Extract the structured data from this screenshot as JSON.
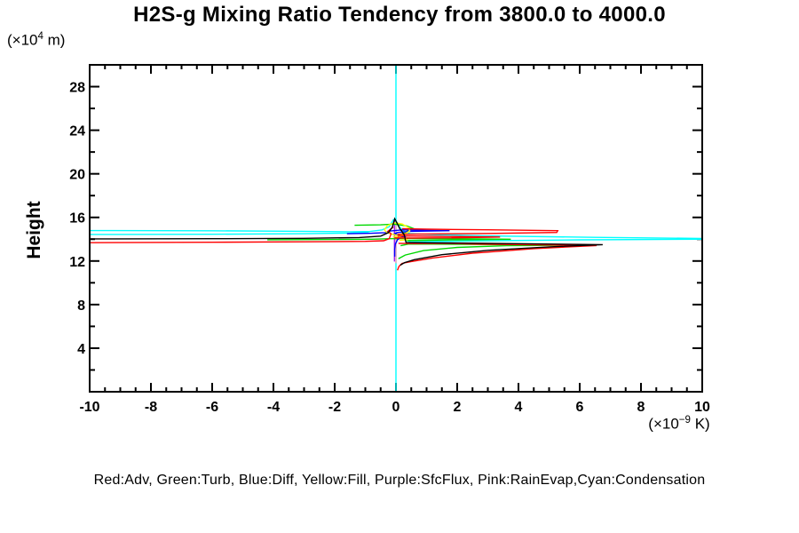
{
  "title": "H2S-g Mixing Ratio Tendency from 3800.0 to 4000.0",
  "y_axis_label": "Height",
  "y_axis_units": {
    "prefix": "(×10",
    "sup": "4",
    "suffix": " m)"
  },
  "x_axis_units": {
    "prefix": "(×10",
    "sup": "−9",
    "suffix": " K)"
  },
  "legend_caption": "Red:Adv, Green:Turb, Blue:Diff, Yellow:Fill, Purple:SfcFlux, Pink:RainEvap,Cyan:Condensation",
  "chart_data": {
    "type": "line",
    "title": "H2S-g Mixing Ratio Tendency from 3800.0 to 4000.0",
    "xlabel": "(×10−9 K)",
    "ylabel": "Height (×104 m)",
    "xlim": [
      -10,
      10
    ],
    "ylim": [
      0,
      30
    ],
    "x_major_ticks": [
      -10,
      -8,
      -6,
      -4,
      -2,
      0,
      2,
      4,
      6,
      8,
      10
    ],
    "x_minor_step": 0.5,
    "y_major_ticks": [
      4,
      8,
      12,
      16,
      20,
      24,
      28
    ],
    "y_minor_step": 2,
    "grid": false,
    "legend_position": "bottom-caption",
    "axis_color": "#000000",
    "series": [
      {
        "name": "condensation",
        "legend_label": "Condensation",
        "color": "#00ffff",
        "paths": [
          [
            [
              0,
              0
            ],
            [
              0,
              30
            ]
          ],
          [
            [
              -10.4,
              14.8
            ],
            [
              -6,
              14.77
            ],
            [
              -3,
              14.72
            ],
            [
              -1.5,
              14.68
            ],
            [
              -0.85,
              14.71
            ],
            [
              -0.45,
              14.85
            ],
            [
              -0.22,
              15.15
            ],
            [
              -0.08,
              15.8
            ],
            [
              0.02,
              15.6
            ],
            [
              0.12,
              15.12
            ],
            [
              0.25,
              14.75
            ],
            [
              0.45,
              14.52
            ],
            [
              1.2,
              14.42
            ],
            [
              3,
              14.3
            ],
            [
              6.5,
              14.17
            ],
            [
              10.2,
              14.06
            ],
            [
              10.2,
              14.0
            ],
            [
              6,
              13.94
            ],
            [
              3,
              13.86
            ],
            [
              1.2,
              13.79
            ],
            [
              0.5,
              13.76
            ],
            [
              0.3,
              13.9
            ],
            [
              0.25,
              14.15
            ],
            [
              0.38,
              14.32
            ]
          ],
          [
            [
              -10.4,
              14.43
            ],
            [
              -6,
              14.45
            ],
            [
              -3,
              14.5
            ],
            [
              -1.5,
              14.56
            ],
            [
              -0.95,
              14.63
            ],
            [
              -0.85,
              14.71
            ]
          ]
        ]
      },
      {
        "name": "sfcflux",
        "legend_label": "SfcFlux",
        "color": "#a020f0",
        "paths": [
          [
            [
              -0.05,
              11.95
            ],
            [
              -0.05,
              15.75
            ]
          ]
        ]
      },
      {
        "name": "rainevap",
        "legend_label": "RainEvap",
        "color": "#ff9db0",
        "paths": [
          [
            [
              0,
              11.8
            ],
            [
              0,
              15.35
            ]
          ]
        ]
      },
      {
        "name": "turb",
        "legend_label": "Turb",
        "color": "#00d800",
        "paths": [
          [
            [
              -1.35,
              15.28
            ],
            [
              -0.5,
              15.32
            ],
            [
              -0.05,
              15.38
            ],
            [
              0.35,
              15.22
            ],
            [
              0.55,
              15.0
            ],
            [
              0.4,
              14.8
            ],
            [
              0.28,
              14.55
            ],
            [
              0.15,
              14.45
            ]
          ],
          [
            [
              -4.2,
              13.95
            ],
            [
              -2,
              13.97
            ],
            [
              -0.8,
              14.0
            ],
            [
              -0.2,
              14.05
            ],
            [
              0.5,
              14.07
            ],
            [
              2,
              14.05
            ],
            [
              3.75,
              14.0
            ],
            [
              2,
              13.94
            ],
            [
              0.8,
              13.9
            ],
            [
              0.35,
              13.88
            ]
          ],
          [
            [
              0.08,
              12.2
            ],
            [
              0.3,
              12.55
            ],
            [
              0.9,
              12.95
            ],
            [
              2,
              13.25
            ],
            [
              3.6,
              13.4
            ],
            [
              5.55,
              13.45
            ],
            [
              3,
              13.52
            ],
            [
              1.2,
              13.55
            ],
            [
              0.4,
              13.55
            ],
            [
              0.15,
              13.4
            ]
          ]
        ]
      },
      {
        "name": "diff",
        "legend_label": "Diff",
        "color": "#0000ff",
        "paths": [
          [
            [
              -1.6,
              14.5
            ],
            [
              -0.8,
              14.54
            ],
            [
              -0.35,
              14.6
            ],
            [
              -0.2,
              14.75
            ],
            [
              0.2,
              14.85
            ],
            [
              1.75,
              14.78
            ],
            [
              0.5,
              14.72
            ],
            [
              0.05,
              14.62
            ],
            [
              -0.08,
              14.45
            ],
            [
              0.15,
              14.38
            ],
            [
              0.3,
              14.28
            ],
            [
              0.15,
              14.15
            ],
            [
              0.05,
              13.95
            ],
            [
              -0.02,
              13.55
            ],
            [
              -0.04,
              13.1
            ],
            [
              -0.04,
              12.4
            ]
          ]
        ]
      },
      {
        "name": "fill",
        "legend_label": "Fill",
        "color": "#ffff00",
        "paths": [
          [
            [
              -0.38,
              14.85
            ],
            [
              -0.28,
              15.25
            ],
            [
              -0.05,
              15.5
            ],
            [
              0.2,
              15.4
            ],
            [
              0.42,
              15.05
            ],
            [
              0.45,
              14.75
            ],
            [
              0.3,
              14.5
            ],
            [
              0.1,
              14.3
            ],
            [
              -0.12,
              14.45
            ],
            [
              -0.3,
              14.62
            ],
            [
              -0.38,
              14.85
            ]
          ],
          [
            [
              -0.1,
              14.22
            ],
            [
              0.25,
              14.12
            ],
            [
              0.35,
              13.95
            ],
            [
              0.12,
              13.9
            ]
          ]
        ]
      },
      {
        "name": "adv",
        "legend_label": "Adv",
        "color": "#ff0000",
        "paths": [
          [
            [
              -10.4,
              13.68
            ],
            [
              -6,
              13.72
            ],
            [
              -3,
              13.76
            ],
            [
              -1,
              13.8
            ],
            [
              -0.4,
              13.86
            ],
            [
              -0.22,
              14.05
            ],
            [
              -0.16,
              14.5
            ],
            [
              -0.26,
              14.72
            ],
            [
              -0.16,
              14.95
            ],
            [
              -0.08,
              15.12
            ]
          ],
          [
            [
              -0.05,
              14.12
            ],
            [
              0.5,
              14.1
            ],
            [
              2,
              14.13
            ],
            [
              3.4,
              14.2
            ],
            [
              1.5,
              14.27
            ],
            [
              0.3,
              14.3
            ],
            [
              0.05,
              14.28
            ]
          ],
          [
            [
              0.05,
              14.45
            ],
            [
              1,
              14.48
            ],
            [
              3,
              14.53
            ],
            [
              5.25,
              14.62
            ],
            [
              5.28,
              14.78
            ],
            [
              3,
              14.86
            ],
            [
              1,
              14.92
            ],
            [
              0.2,
              14.96
            ]
          ],
          [
            [
              0.08,
              13.62
            ],
            [
              0.6,
              13.6
            ],
            [
              1.6,
              13.62
            ],
            [
              2.6,
              13.55
            ],
            [
              6.55,
              13.42
            ],
            [
              4.5,
              13.13
            ],
            [
              2.5,
              12.72
            ],
            [
              1.2,
              12.28
            ],
            [
              0.5,
              11.95
            ],
            [
              0.2,
              11.78
            ],
            [
              0.1,
              11.5
            ],
            [
              0.05,
              11.15
            ]
          ]
        ]
      },
      {
        "name": "total",
        "legend_label": "",
        "color": "#000000",
        "paths": [
          [
            [
              -10.4,
              14.02
            ],
            [
              -6,
              14.05
            ],
            [
              -3,
              14.08
            ],
            [
              -1.2,
              14.15
            ],
            [
              -0.5,
              14.28
            ],
            [
              -0.25,
              14.6
            ],
            [
              -0.12,
              15.1
            ],
            [
              -0.04,
              15.88
            ],
            [
              0.04,
              15.45
            ],
            [
              0.12,
              15.0
            ],
            [
              0.2,
              14.7
            ],
            [
              0.28,
              14.35
            ],
            [
              0.3,
              14.0
            ],
            [
              0.33,
              13.7
            ],
            [
              1.2,
              13.67
            ],
            [
              3,
              13.62
            ],
            [
              6.75,
              13.5
            ],
            [
              5,
              13.3
            ],
            [
              3,
              12.98
            ],
            [
              1.5,
              12.58
            ],
            [
              0.6,
              12.12
            ],
            [
              0.28,
              11.85
            ],
            [
              0.14,
              11.62
            ]
          ]
        ]
      }
    ]
  }
}
